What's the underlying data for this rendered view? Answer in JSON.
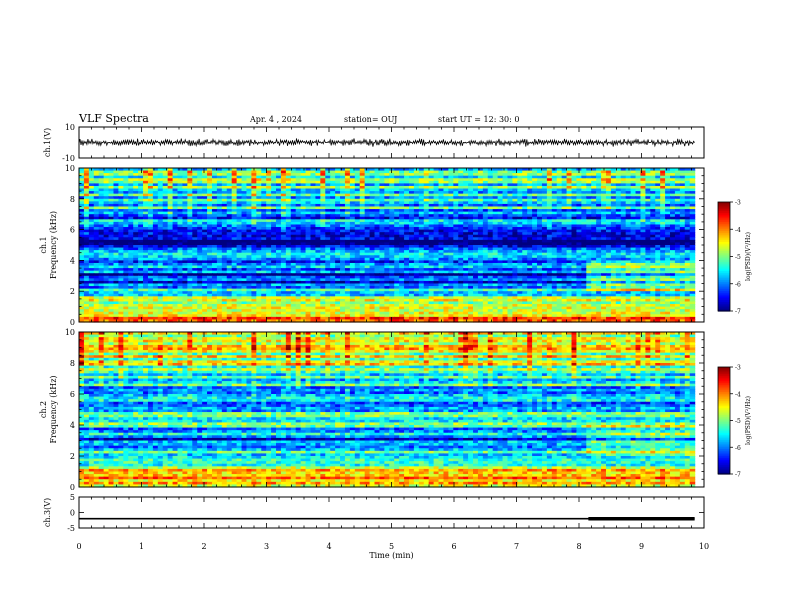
{
  "header": {
    "title": "VLF Spectra",
    "date": "Apr. 4 , 2024",
    "station": "station= OUJ",
    "start": "start UT = 12: 30: 0"
  },
  "chart_data": [
    {
      "type": "line",
      "panel": "ch1-waveform",
      "ylabel": "ch.1(V)",
      "ylim": [
        -10,
        10
      ],
      "yticks": [
        "10",
        "-10"
      ],
      "xlim": [
        0,
        10
      ],
      "x_extent": [
        0,
        9.85
      ],
      "trace_level": 0,
      "trace_amplitude_approx": 2
    },
    {
      "type": "heatmap",
      "panel": "ch1-spectrogram",
      "ylabel": "ch.1 Frequency (kHz)",
      "ylim": [
        0,
        10
      ],
      "yticks": [
        "0",
        "2",
        "4",
        "6",
        "8",
        "10"
      ],
      "xlim": [
        0,
        10
      ],
      "x_extent": [
        0,
        9.85
      ],
      "colorbar": {
        "label": "log(PSD)(V²/Hz)",
        "range": [
          -7,
          -3
        ],
        "ticks": [
          "-3",
          "-4",
          "-5",
          "-6",
          "-7"
        ]
      },
      "profile_freq_khz": [
        0,
        0.5,
        1,
        1.5,
        2,
        2.5,
        3,
        3.5,
        4,
        4.5,
        5,
        5.5,
        6,
        7,
        8,
        9,
        10
      ],
      "profile_log_psd": [
        -4.4,
        -4.0,
        -5.2,
        -5.0,
        -5.4,
        -6.4,
        -6.6,
        -5.7,
        -6.1,
        -5.0,
        -6.8,
        -6.6,
        -6.4,
        -5.8,
        -5.4,
        -5.3,
        -5.3
      ]
    },
    {
      "type": "heatmap",
      "panel": "ch2-spectrogram",
      "ylabel": "ch.2 Frequency (kHz)",
      "ylim": [
        0,
        10
      ],
      "yticks": [
        "0",
        "2",
        "4",
        "6",
        "8",
        "10"
      ],
      "xlim": [
        0,
        10
      ],
      "x_extent": [
        0,
        9.85
      ],
      "colorbar": {
        "label": "log(PSD)(V²/Hz)",
        "range": [
          -7,
          -3
        ],
        "ticks": [
          "-3",
          "-4",
          "-5",
          "-6",
          "-7"
        ]
      },
      "profile_freq_khz": [
        0,
        0.5,
        1,
        1.5,
        2,
        2.5,
        3,
        3.5,
        4,
        4.5,
        5,
        5.5,
        6,
        7,
        8,
        9,
        10
      ],
      "profile_log_psd": [
        -4.3,
        -4.2,
        -4.6,
        -5.0,
        -5.4,
        -5.6,
        -6.3,
        -5.6,
        -5.6,
        -5.0,
        -6.2,
        -6.0,
        -5.8,
        -5.4,
        -4.8,
        -4.5,
        -4.6
      ]
    },
    {
      "type": "line",
      "panel": "ch3-level",
      "ylabel": "ch.3(V)",
      "ylim": [
        -5,
        5
      ],
      "yticks": [
        "5",
        "0",
        "-5"
      ],
      "xlim": [
        0,
        10
      ],
      "x_extent": [
        0,
        9.85
      ],
      "trace_level": -2,
      "thick_segment_x": [
        8.15,
        9.85
      ]
    },
    {
      "type": "axis",
      "panel": "time-axis",
      "xlabel": "Time (min)",
      "xlim": [
        0,
        10
      ],
      "xticks": [
        "0",
        "1",
        "2",
        "3",
        "4",
        "5",
        "6",
        "7",
        "8",
        "9",
        "10"
      ]
    }
  ]
}
